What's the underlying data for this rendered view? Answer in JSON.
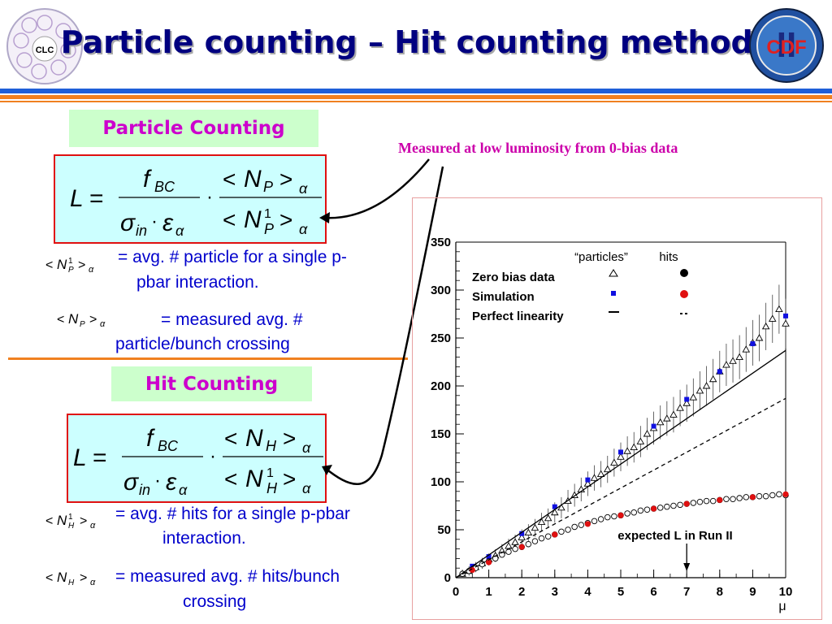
{
  "header": {
    "title": "Particle counting – Hit counting methods",
    "left_logo_text": "CLC",
    "right_logo_text": "CDF",
    "right_logo_mark": "II"
  },
  "particle_section": {
    "label": "Particle Counting",
    "desc1_sym": "< N¹P >α",
    "desc1": "= avg. # particle for a single p-pbar interaction.",
    "desc1_line1": "= avg. # particle for a single p-",
    "desc1_line2": "pbar interaction.",
    "desc2_sym": "< NP >α",
    "desc2_line1": "= measured avg. #",
    "desc2_line2": "particle/bunch crossing"
  },
  "hit_section": {
    "label": "Hit Counting",
    "desc1_sym": "< N¹H >α",
    "desc1_line1": "= avg. # hits for a single p-pbar",
    "desc1_line2": "interaction.",
    "desc2_sym": "< NH >α",
    "desc2_line1": "= measured avg. # hits/bunch",
    "desc2_line2": "crossing"
  },
  "annotation": "Measured at low luminosity from 0-bias data",
  "chart_data": {
    "type": "scatter",
    "xlabel": "μ",
    "x_ticks": [
      "0",
      "1",
      "2",
      "3",
      "4",
      "5",
      "6",
      "7",
      "8",
      "9",
      "10"
    ],
    "y_ticks": [
      "0",
      "50",
      "100",
      "150",
      "200",
      "250",
      "300",
      "350"
    ],
    "xlim": [
      0,
      10
    ],
    "ylim": [
      0,
      350
    ],
    "legend": {
      "col_particles": "“particles”",
      "col_hits": "hits",
      "rows": [
        "Zero bias data",
        "Simulation",
        "Perfect linearity"
      ]
    },
    "annotation": "expected L in Run II",
    "annotation_x": 7,
    "series": [
      {
        "name": "Zero bias data (particles)",
        "marker": "open-triangle",
        "color": "#000000",
        "x": [
          0.2,
          0.4,
          0.6,
          0.8,
          1.0,
          1.2,
          1.4,
          1.6,
          1.8,
          2.0,
          2.2,
          2.4,
          2.6,
          2.8,
          3.0,
          3.2,
          3.4,
          3.6,
          3.8,
          4.0,
          4.2,
          4.4,
          4.6,
          4.8,
          5.0,
          5.2,
          5.4,
          5.6,
          5.8,
          6.0,
          6.2,
          6.4,
          6.6,
          6.8,
          7.0,
          7.2,
          7.4,
          7.6,
          7.8,
          8.0,
          8.2,
          8.4,
          8.6,
          8.8,
          9.0,
          9.2,
          9.4,
          9.6,
          9.8,
          10.0
        ],
        "y": [
          4,
          7,
          11,
          15,
          19,
          23,
          28,
          33,
          37,
          42,
          47,
          52,
          58,
          62,
          68,
          73,
          80,
          86,
          92,
          98,
          104,
          108,
          113,
          120,
          126,
          132,
          136,
          142,
          150,
          156,
          162,
          166,
          170,
          177,
          182,
          188,
          195,
          200,
          207,
          215,
          222,
          226,
          230,
          238,
          245,
          250,
          262,
          270,
          280,
          265
        ]
      },
      {
        "name": "Simulation (particles)",
        "marker": "filled-square",
        "color": "#1010e0",
        "x": [
          0.5,
          1.0,
          2.0,
          3.0,
          4.0,
          5.0,
          6.0,
          7.0,
          8.0,
          9.0,
          10.0
        ],
        "y": [
          12,
          22,
          46,
          74,
          102,
          131,
          158,
          186,
          215,
          244,
          273
        ]
      },
      {
        "name": "Zero bias data (hits)",
        "marker": "open-circle",
        "color": "#000000",
        "x": [
          0.2,
          0.4,
          0.6,
          0.8,
          1.0,
          1.2,
          1.4,
          1.6,
          1.8,
          2.0,
          2.2,
          2.4,
          2.6,
          2.8,
          3.0,
          3.2,
          3.4,
          3.6,
          3.8,
          4.0,
          4.2,
          4.4,
          4.6,
          4.8,
          5.0,
          5.2,
          5.4,
          5.6,
          5.8,
          6.0,
          6.2,
          6.4,
          6.6,
          6.8,
          7.0,
          7.2,
          7.4,
          7.6,
          7.8,
          8.0,
          8.2,
          8.4,
          8.6,
          8.8,
          9.0,
          9.2,
          9.4,
          9.6,
          9.8,
          10.0
        ],
        "y": [
          4,
          7,
          10,
          14,
          17,
          20,
          24,
          27,
          30,
          32,
          35,
          38,
          41,
          43,
          45,
          48,
          50,
          53,
          55,
          57,
          59,
          61,
          63,
          64,
          65,
          67,
          68,
          70,
          71,
          72,
          73,
          74,
          75,
          76,
          77,
          78,
          79,
          80,
          80,
          81,
          82,
          82,
          83,
          84,
          84,
          85,
          85,
          86,
          87,
          86
        ]
      },
      {
        "name": "Simulation (hits)",
        "marker": "filled-circle",
        "color": "#e01010",
        "x": [
          0.5,
          1.0,
          2.0,
          3.0,
          4.0,
          5.0,
          6.0,
          7.0,
          8.0,
          9.0,
          10.0
        ],
        "y": [
          8,
          16,
          32,
          45,
          56,
          65,
          72,
          77,
          81,
          84,
          87
        ]
      },
      {
        "name": "Perfect linearity (particles)",
        "style": "solid-line",
        "x": [
          0,
          10
        ],
        "y": [
          0,
          237
        ]
      },
      {
        "name": "Perfect linearity (hits)",
        "style": "dashed-line",
        "x": [
          0,
          10
        ],
        "y": [
          0,
          187
        ]
      }
    ]
  }
}
